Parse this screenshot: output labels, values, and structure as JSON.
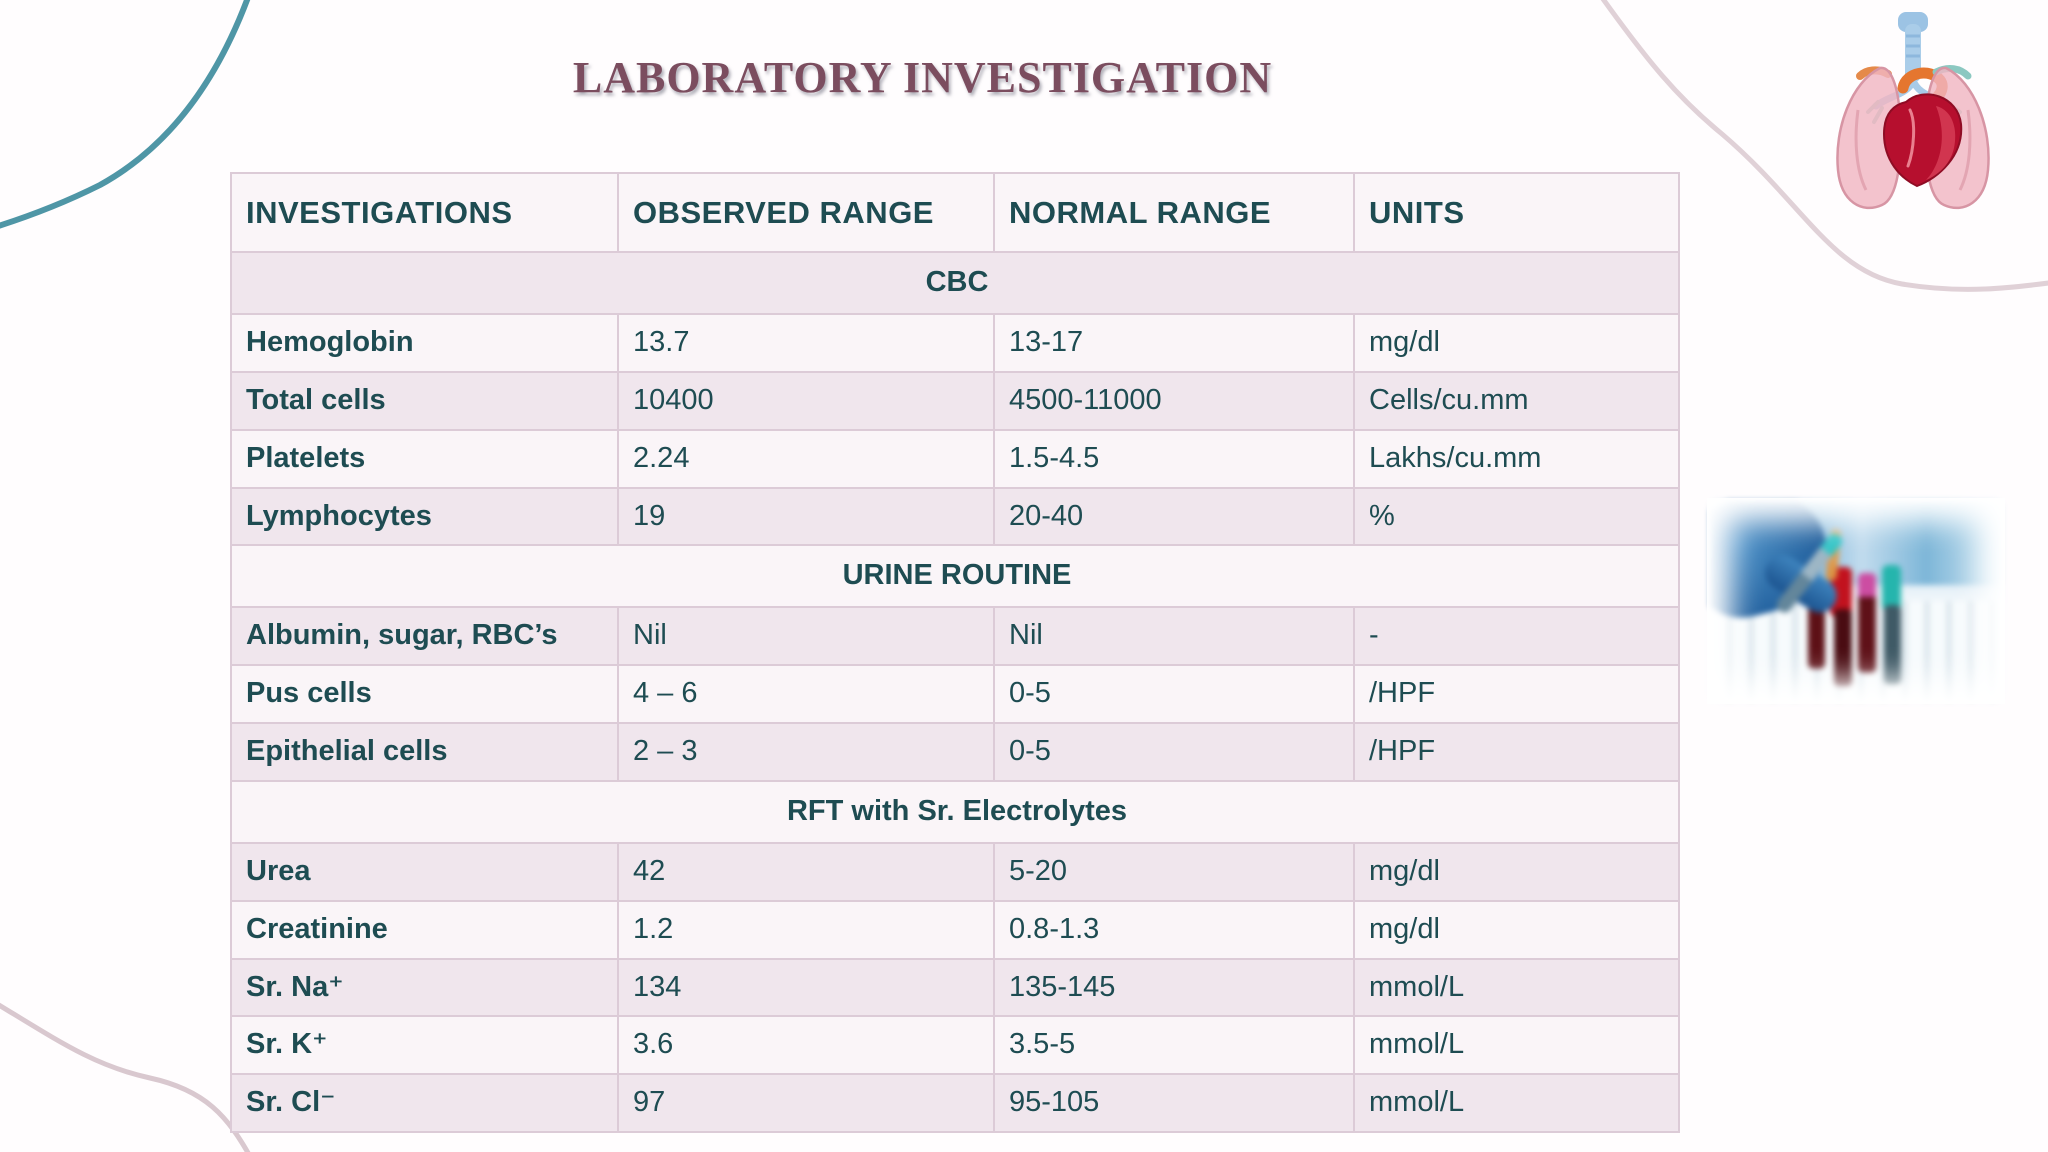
{
  "title": "LABORATORY INVESTIGATION",
  "colors": {
    "title_color": "#7b4d5f",
    "text_color": "#1e4c52",
    "alert_color": "#ed1c16",
    "border_color": "#dccbd7",
    "row_light": "#faf5f8",
    "row_dark": "#f0e6ed",
    "teal_curve": "#4f96a6",
    "pink_curve": "#d9c8cf"
  },
  "table": {
    "columns": [
      "INVESTIGATIONS",
      "OBSERVED RANGE",
      "NORMAL RANGE",
      "UNITS"
    ],
    "sections": [
      {
        "title": "CBC",
        "rows": [
          {
            "investigation": "Hemoglobin",
            "observed": "13.7",
            "normal": "13-17",
            "units": "mg/dl"
          },
          {
            "investigation": "Total cells",
            "observed": "10400",
            "normal": "4500-11000",
            "units": "Cells/cu.mm"
          },
          {
            "investigation": "Platelets",
            "observed": "2.24",
            "normal": "1.5-4.5",
            "units": "Lakhs/cu.mm"
          },
          {
            "investigation": "Lymphocytes",
            "observed": "19",
            "normal": "20-40",
            "units": "%"
          }
        ]
      },
      {
        "title": "URINE ROUTINE",
        "rows": [
          {
            "investigation": "Albumin, sugar, RBC’s",
            "observed": "Nil",
            "normal": "Nil",
            "units": "-"
          },
          {
            "investigation": "Pus cells",
            "observed": "4 – 6",
            "normal": "0-5",
            "units": "/HPF"
          },
          {
            "investigation": "Epithelial cells",
            "observed": "2 – 3",
            "normal": "0-5",
            "units": "/HPF"
          }
        ]
      },
      {
        "title": "RFT with Sr. Electrolytes",
        "rows": [
          {
            "investigation": "Urea",
            "observed": "42",
            "normal": "5-20",
            "units": "mg/dl",
            "alert": true
          },
          {
            "investigation": "Creatinine",
            "observed": "1.2",
            "normal": "0.8-1.3",
            "units": "mg/dl"
          },
          {
            "investigation": "Sr. Na⁺",
            "observed": "134",
            "normal": "135-145",
            "units": "mmol/L"
          },
          {
            "investigation": "Sr. K⁺",
            "observed": "3.6",
            "normal": "3.5-5",
            "units": "mmol/L"
          },
          {
            "investigation": "Sr. Cl⁻",
            "observed": "97",
            "normal": "95-105",
            "units": "mmol/L"
          }
        ]
      }
    ]
  },
  "decorations": {
    "top_right": "lungs-heart-anatomy-illustration",
    "right_middle": "blood-test-tubes-lab-photo",
    "corner_curves": [
      "teal-arc-top-left",
      "pink-curve-bottom-left",
      "pink-curve-top-right"
    ]
  }
}
